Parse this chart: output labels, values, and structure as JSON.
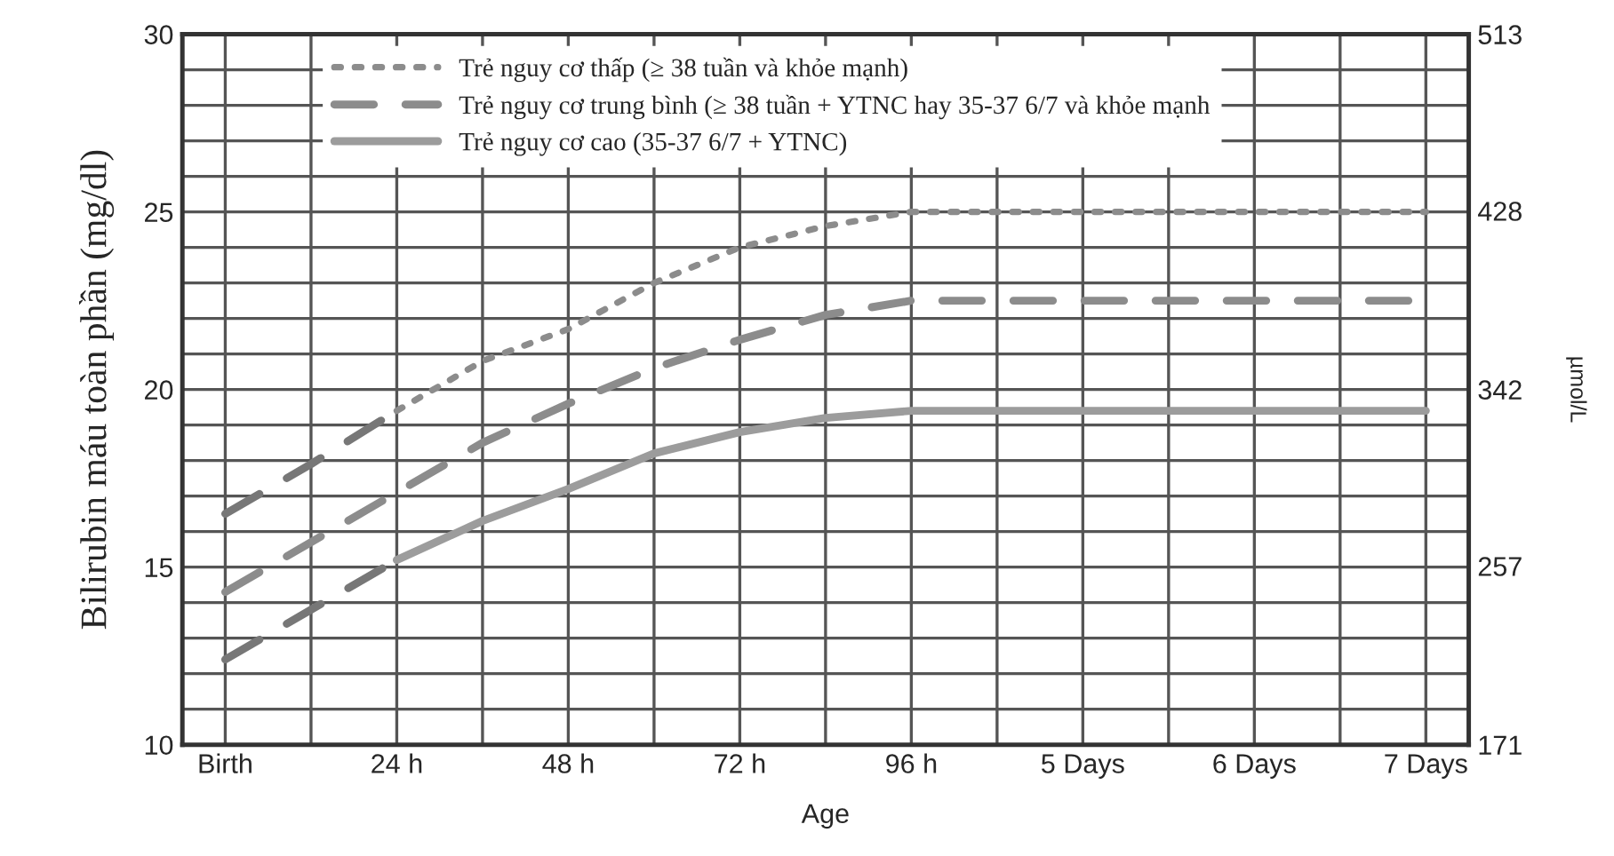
{
  "chart_data": {
    "type": "line",
    "xlabel": "Age",
    "ylabel": "Bilirubin máu toàn phần (mg/dl)",
    "y2label": "µmol/L",
    "categories": [
      "Birth",
      null,
      "24 h",
      null,
      "48 h",
      null,
      "72 h",
      null,
      "96 h",
      null,
      "5 Days",
      null,
      "6 Days",
      null,
      "7 Days"
    ],
    "ylim": [
      10,
      30
    ],
    "yticks": [
      10,
      {
        "value": 11,
        "label": null
      },
      {
        "value": 12,
        "label": null
      },
      {
        "value": 13,
        "label": null
      },
      {
        "value": 14,
        "label": null
      },
      15,
      {
        "value": 16,
        "label": null
      },
      {
        "value": 17,
        "label": null
      },
      {
        "value": 18,
        "label": null
      },
      {
        "value": 19,
        "label": null
      },
      20,
      {
        "value": 21,
        "label": null
      },
      {
        "value": 22,
        "label": null
      },
      {
        "value": 23,
        "label": null
      },
      {
        "value": 24,
        "label": null
      },
      25,
      {
        "value": 26,
        "label": null
      },
      {
        "value": 27,
        "label": null
      },
      {
        "value": 28,
        "label": null
      },
      {
        "value": 29,
        "label": null
      },
      30
    ],
    "y2lim": [
      171,
      513
    ],
    "y2ticks": [
      171,
      257,
      342,
      428,
      513
    ],
    "grid": true,
    "legend": "top left",
    "series": [
      {
        "name": "Trẻ nguy cơ thấp (≥ 38 tuần và khỏe mạnh)",
        "color": "#8c8c8c",
        "line_style": "dotted",
        "values": [
          null,
          null,
          19.4,
          20.8,
          21.7,
          23.0,
          24.0,
          24.6,
          25.0,
          25.0,
          25.0,
          25.0,
          25.0,
          25.0,
          25.0
        ]
      },
      {
        "name": "Trẻ nguy cơ trung bình (≥ 38 tuần + YTNC hay 35-37 6/7 và khỏe mạnh",
        "color": "#8c8c8c",
        "line_style": "dashed",
        "values": [
          14.3,
          15.7,
          17.1,
          18.5,
          19.6,
          20.6,
          21.4,
          22.1,
          22.5,
          22.5,
          22.5,
          22.5,
          22.5,
          22.5,
          22.5
        ]
      },
      {
        "name": "Trẻ nguy cơ cao (35-37 6/7 + YTNC)",
        "color": "#9c9c9c",
        "line_style": "solid",
        "values": [
          null,
          null,
          15.2,
          16.3,
          17.2,
          18.2,
          18.8,
          19.2,
          19.4,
          19.4,
          19.4,
          19.4,
          19.4,
          19.4,
          19.4
        ]
      },
      {
        "color": "#777777",
        "line_style": "dashed",
        "values": [
          16.5,
          17.9,
          19.4,
          null,
          null,
          null,
          null,
          null,
          null,
          null,
          null,
          null,
          null,
          null,
          null
        ]
      },
      {
        "color": "#777777",
        "line_style": "dashed",
        "values": [
          12.4,
          13.8,
          15.2,
          null,
          null,
          null,
          null,
          null,
          null,
          null,
          null,
          null,
          null,
          null,
          null
        ]
      }
    ]
  }
}
